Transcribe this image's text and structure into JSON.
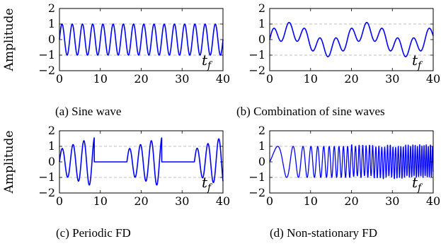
{
  "figure": {
    "ylabel": "Amplitude"
  },
  "chart_data": [
    {
      "type": "line",
      "panel": "a",
      "caption": "(a) Sine wave",
      "annotation": "t_f",
      "xlim": [
        0,
        40
      ],
      "ylim": [
        -2,
        2
      ],
      "xticks": [
        0,
        10,
        20,
        30,
        40
      ],
      "yticks": [
        -2,
        -1,
        0,
        1,
        2
      ],
      "grid": "horizontal dashed at y = -1 and y = 1",
      "line_color": "#0000ff",
      "series": [
        {
          "description": "sin(2*pi*x/2.5): amplitude 1, period 2.5, 16 cycles over 0-40",
          "amplitude": 1,
          "period": 2.5
        }
      ]
    },
    {
      "type": "line",
      "panel": "b",
      "caption": "(b) Combination of sine waves",
      "annotation": "t_f",
      "xlim": [
        0,
        40
      ],
      "ylim": [
        -2,
        2
      ],
      "xticks": [
        0,
        10,
        20,
        30,
        40
      ],
      "yticks": [
        -2,
        -1,
        0,
        1,
        2
      ],
      "grid": "horizontal dashed at y = -1 and y = 1",
      "line_color": "#0000ff",
      "series": [
        {
          "description": "sum of two sines: 0.55*sin(2*pi*x/3.8) + 0.55*sin(2*pi*x/19), peaks about 1, troughs about -1",
          "components": [
            {
              "amplitude": 0.55,
              "period": 3.8
            },
            {
              "amplitude": 0.55,
              "period": 19
            }
          ]
        }
      ]
    },
    {
      "type": "line",
      "panel": "c",
      "caption": "(c) Periodic FD",
      "annotation": "t_f",
      "xlim": [
        0,
        40
      ],
      "ylim": [
        -2,
        2
      ],
      "xticks": [
        0,
        10,
        20,
        30,
        40
      ],
      "yticks": [
        -2,
        -1,
        0,
        1,
        2
      ],
      "grid": "horizontal dashed at y = -1 and y = 1",
      "line_color": "#0000ff",
      "series": [
        {
          "description": "bursts of oscillation separated by flat zero segments; each burst grows in amplitude from about 0.8 to about 1.6",
          "bursts": [
            {
              "start": 0,
              "end": 8.5
            },
            {
              "start": 16.5,
              "end": 25
            },
            {
              "start": 33,
              "end": 40
            }
          ],
          "burst_period": 2.65,
          "amplitude_start": 0.8,
          "amplitude_end": 1.6
        }
      ]
    },
    {
      "type": "line",
      "panel": "d",
      "caption": "(d) Non-stationary FD",
      "annotation": "t_f",
      "xlim": [
        0,
        40
      ],
      "ylim": [
        -2,
        2
      ],
      "xticks": [
        0,
        10,
        20,
        30,
        40
      ],
      "yticks": [
        -2,
        -1,
        0,
        1,
        2
      ],
      "grid": "horizontal dashed at y = -1 and y = 1",
      "line_color": "#0000ff",
      "series": [
        {
          "description": "chirp: amplitude about 1, frequency increasing from about 0.08 at x=0 to about 2.0 at x=40, with a slightly noisy envelope at high frequency",
          "amplitude": 1,
          "frequency_start": 0.08,
          "frequency_end": 2.0
        }
      ]
    }
  ]
}
